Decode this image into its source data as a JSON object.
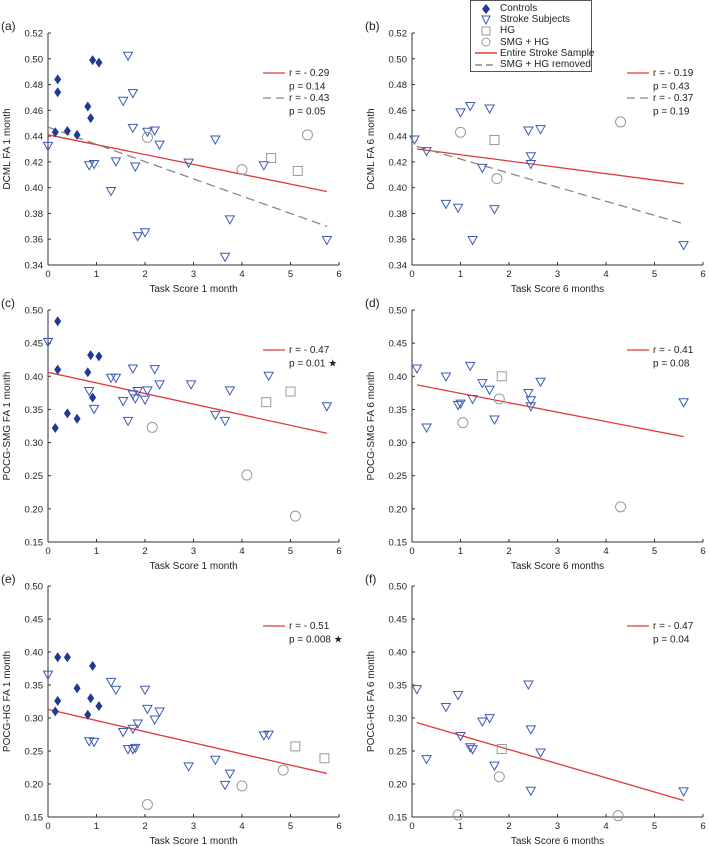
{
  "colors": {
    "controls": "#1f3a93",
    "stroke": "#3b5bb5",
    "hg": "#999999",
    "smg": "#999999",
    "red": "#e03a3a",
    "dashed": "#888888"
  },
  "legend": {
    "controls": "Controls",
    "stroke": "Stroke Subjects",
    "hg": "HG",
    "smg": "SMG + HG",
    "entire": "Entire Stroke Sample",
    "removed": "SMG + HG removed"
  },
  "chart_data": [
    {
      "type": "scatter",
      "panel": "(a)",
      "xlabel": "Task Score 1 month",
      "ylabel": "DCML FA 1 month",
      "xlim": [
        0,
        6
      ],
      "ylim": [
        0.34,
        0.52
      ],
      "xticks": [
        "0",
        "1",
        "2",
        "3",
        "4",
        "5",
        "6"
      ],
      "yticks": [
        "0.34",
        "0.36",
        "0.38",
        "0.40",
        "0.42",
        "0.44",
        "0.46",
        "0.48",
        "0.50",
        "0.52"
      ],
      "controls": [
        [
          0.15,
          0.443
        ],
        [
          0.2,
          0.484
        ],
        [
          0.2,
          0.474
        ],
        [
          0.4,
          0.444
        ],
        [
          0.6,
          0.441
        ],
        [
          0.82,
          0.463
        ],
        [
          0.88,
          0.454
        ],
        [
          0.92,
          0.499
        ],
        [
          1.05,
          0.497
        ]
      ],
      "stroke": [
        [
          0,
          0.432
        ],
        [
          0.85,
          0.417
        ],
        [
          0.95,
          0.418
        ],
        [
          1.3,
          0.397
        ],
        [
          1.4,
          0.42
        ],
        [
          1.55,
          0.467
        ],
        [
          1.65,
          0.502
        ],
        [
          1.75,
          0.473
        ],
        [
          1.75,
          0.446
        ],
        [
          1.8,
          0.416
        ],
        [
          1.85,
          0.362
        ],
        [
          2.0,
          0.365
        ],
        [
          2.05,
          0.443
        ],
        [
          2.2,
          0.444
        ],
        [
          2.3,
          0.433
        ],
        [
          2.9,
          0.419
        ],
        [
          3.45,
          0.437
        ],
        [
          3.65,
          0.346
        ],
        [
          3.75,
          0.375
        ],
        [
          4.45,
          0.417
        ],
        [
          5.75,
          0.359
        ]
      ],
      "hg": [
        [
          4.6,
          0.423
        ],
        [
          5.15,
          0.413
        ]
      ],
      "smg": [
        [
          2.05,
          0.439
        ],
        [
          4.0,
          0.414
        ],
        [
          5.35,
          0.441
        ]
      ],
      "fit_entire": [
        [
          0,
          0.441
        ],
        [
          5.75,
          0.397
        ]
      ],
      "fit_removed": [
        [
          0,
          0.447
        ],
        [
          5.75,
          0.37
        ]
      ],
      "stats_entire": [
        "r = - 0.29",
        "p = 0.14"
      ],
      "stats_removed": [
        "r = - 0.43",
        "p = 0.05"
      ]
    },
    {
      "type": "scatter",
      "panel": "(b)",
      "xlabel": "Task Score 6 months",
      "ylabel": "DCML FA 6 month",
      "xlim": [
        0,
        6
      ],
      "ylim": [
        0.34,
        0.52
      ],
      "xticks": [
        "0",
        "1",
        "2",
        "3",
        "4",
        "5",
        "6"
      ],
      "yticks": [
        "0.34",
        "0.36",
        "0.38",
        "0.40",
        "0.42",
        "0.44",
        "0.46",
        "0.48",
        "0.50",
        "0.52"
      ],
      "controls": [],
      "stroke": [
        [
          0.05,
          0.437
        ],
        [
          0.3,
          0.428
        ],
        [
          0.7,
          0.387
        ],
        [
          0.95,
          0.384
        ],
        [
          1.0,
          0.458
        ],
        [
          1.2,
          0.463
        ],
        [
          1.25,
          0.359
        ],
        [
          1.45,
          0.415
        ],
        [
          1.6,
          0.461
        ],
        [
          1.7,
          0.383
        ],
        [
          2.4,
          0.444
        ],
        [
          2.45,
          0.424
        ],
        [
          2.45,
          0.418
        ],
        [
          2.65,
          0.445
        ],
        [
          5.6,
          0.355
        ]
      ],
      "hg": [
        [
          1.7,
          0.437
        ]
      ],
      "smg": [
        [
          1.0,
          0.443
        ],
        [
          1.75,
          0.407
        ],
        [
          4.3,
          0.451
        ]
      ],
      "fit_entire": [
        [
          0.1,
          0.43
        ],
        [
          5.6,
          0.403
        ]
      ],
      "fit_removed": [
        [
          0.1,
          0.432
        ],
        [
          5.6,
          0.372
        ]
      ],
      "stats_entire": [
        "r = - 0.19",
        "p = 0.43"
      ],
      "stats_removed": [
        "r = - 0.37",
        "p = 0.19"
      ]
    },
    {
      "type": "scatter",
      "panel": "(c)",
      "xlabel": "Task Score 1 month",
      "ylabel": "POCG-SMG FA 1 month",
      "xlim": [
        0,
        6
      ],
      "ylim": [
        0.15,
        0.5
      ],
      "xticks": [
        "0",
        "1",
        "2",
        "3",
        "4",
        "5",
        "6"
      ],
      "yticks": [
        "0.15",
        "0.20",
        "0.25",
        "0.30",
        "0.35",
        "0.40",
        "0.45",
        "0.50"
      ],
      "controls": [
        [
          0.15,
          0.322
        ],
        [
          0.2,
          0.483
        ],
        [
          0.2,
          0.41
        ],
        [
          0.4,
          0.344
        ],
        [
          0.6,
          0.336
        ],
        [
          0.82,
          0.406
        ],
        [
          0.88,
          0.432
        ],
        [
          0.92,
          0.368
        ],
        [
          1.05,
          0.43
        ]
      ],
      "stroke": [
        [
          0,
          0.451
        ],
        [
          0.85,
          0.377
        ],
        [
          0.95,
          0.35
        ],
        [
          1.3,
          0.397
        ],
        [
          1.4,
          0.397
        ],
        [
          1.55,
          0.362
        ],
        [
          1.65,
          0.332
        ],
        [
          1.75,
          0.411
        ],
        [
          1.75,
          0.372
        ],
        [
          1.8,
          0.366
        ],
        [
          1.85,
          0.377
        ],
        [
          2.0,
          0.364
        ],
        [
          2.05,
          0.378
        ],
        [
          2.2,
          0.41
        ],
        [
          2.3,
          0.387
        ],
        [
          2.95,
          0.387
        ],
        [
          3.45,
          0.341
        ],
        [
          3.65,
          0.332
        ],
        [
          3.75,
          0.378
        ],
        [
          4.55,
          0.4
        ],
        [
          5.75,
          0.354
        ]
      ],
      "hg": [
        [
          4.5,
          0.361
        ],
        [
          5.0,
          0.377
        ]
      ],
      "smg": [
        [
          2.15,
          0.323
        ],
        [
          4.1,
          0.251
        ],
        [
          5.1,
          0.189
        ]
      ],
      "fit_entire": [
        [
          0,
          0.406
        ],
        [
          5.75,
          0.314
        ]
      ],
      "stats_entire": [
        "r = - 0.47",
        "p = 0.01 ★"
      ]
    },
    {
      "type": "scatter",
      "panel": "(d)",
      "xlabel": "Task Score 6 months",
      "ylabel": "POCG-SMG FA 6 month",
      "xlim": [
        0,
        6
      ],
      "ylim": [
        0.15,
        0.5
      ],
      "xticks": [
        "0",
        "1",
        "2",
        "3",
        "4",
        "5",
        "6"
      ],
      "yticks": [
        "0.15",
        "0.20",
        "0.25",
        "0.30",
        "0.35",
        "0.40",
        "0.45",
        "0.50"
      ],
      "controls": [],
      "stroke": [
        [
          0.1,
          0.411
        ],
        [
          0.3,
          0.322
        ],
        [
          0.7,
          0.399
        ],
        [
          0.95,
          0.356
        ],
        [
          1.0,
          0.358
        ],
        [
          1.2,
          0.415
        ],
        [
          1.25,
          0.365
        ],
        [
          1.45,
          0.389
        ],
        [
          1.6,
          0.379
        ],
        [
          1.7,
          0.334
        ],
        [
          2.4,
          0.374
        ],
        [
          2.45,
          0.363
        ],
        [
          2.45,
          0.354
        ],
        [
          2.65,
          0.391
        ],
        [
          5.6,
          0.36
        ]
      ],
      "hg": [
        [
          1.85,
          0.4
        ]
      ],
      "smg": [
        [
          1.05,
          0.33
        ],
        [
          1.8,
          0.366
        ],
        [
          4.3,
          0.203
        ]
      ],
      "fit_entire": [
        [
          0.1,
          0.387
        ],
        [
          5.6,
          0.309
        ]
      ],
      "stats_entire": [
        "r = - 0.41",
        "p = 0.08"
      ]
    },
    {
      "type": "scatter",
      "panel": "(e)",
      "xlabel": "Task Score 1 month",
      "ylabel": "POCG-HG FA 1 month",
      "xlim": [
        0,
        6
      ],
      "ylim": [
        0.15,
        0.5
      ],
      "xticks": [
        "0",
        "1",
        "2",
        "3",
        "4",
        "5",
        "6"
      ],
      "yticks": [
        "0.15",
        "0.20",
        "0.25",
        "0.30",
        "0.35",
        "0.40",
        "0.45",
        "0.50"
      ],
      "controls": [
        [
          0.15,
          0.31
        ],
        [
          0.2,
          0.392
        ],
        [
          0.2,
          0.326
        ],
        [
          0.4,
          0.392
        ],
        [
          0.6,
          0.345
        ],
        [
          0.82,
          0.305
        ],
        [
          0.88,
          0.33
        ],
        [
          0.92,
          0.379
        ],
        [
          1.05,
          0.318
        ]
      ],
      "stroke": [
        [
          0,
          0.365
        ],
        [
          0.85,
          0.264
        ],
        [
          0.95,
          0.263
        ],
        [
          1.3,
          0.354
        ],
        [
          1.4,
          0.342
        ],
        [
          1.55,
          0.278
        ],
        [
          1.65,
          0.252
        ],
        [
          1.75,
          0.283
        ],
        [
          1.75,
          0.252
        ],
        [
          1.8,
          0.254
        ],
        [
          1.85,
          0.291
        ],
        [
          2.0,
          0.342
        ],
        [
          2.05,
          0.313
        ],
        [
          2.2,
          0.297
        ],
        [
          2.3,
          0.309
        ],
        [
          2.9,
          0.226
        ],
        [
          3.45,
          0.236
        ],
        [
          3.65,
          0.198
        ],
        [
          3.75,
          0.215
        ],
        [
          4.45,
          0.273
        ],
        [
          4.55,
          0.274
        ]
      ],
      "hg": [
        [
          5.1,
          0.257
        ],
        [
          5.7,
          0.239
        ]
      ],
      "smg": [
        [
          2.05,
          0.169
        ],
        [
          4.0,
          0.197
        ],
        [
          4.85,
          0.221
        ]
      ],
      "fit_entire": [
        [
          0,
          0.313
        ],
        [
          5.75,
          0.216
        ]
      ],
      "stats_entire": [
        "r = - 0.51",
        "p = 0.008 ★"
      ]
    },
    {
      "type": "scatter",
      "panel": "(f)",
      "xlabel": "Task Score 6 months",
      "ylabel": "POCG-HG FA 6 month",
      "xlim": [
        0,
        6
      ],
      "ylim": [
        0.15,
        0.5
      ],
      "xticks": [
        "0",
        "1",
        "2",
        "3",
        "4",
        "5",
        "6"
      ],
      "yticks": [
        "0.15",
        "0.20",
        "0.25",
        "0.30",
        "0.35",
        "0.40",
        "0.45",
        "0.50"
      ],
      "controls": [],
      "stroke": [
        [
          0.1,
          0.343
        ],
        [
          0.3,
          0.237
        ],
        [
          0.7,
          0.316
        ],
        [
          0.95,
          0.334
        ],
        [
          1.0,
          0.272
        ],
        [
          1.2,
          0.255
        ],
        [
          1.25,
          0.252
        ],
        [
          1.45,
          0.294
        ],
        [
          1.6,
          0.299
        ],
        [
          1.7,
          0.227
        ],
        [
          2.4,
          0.35
        ],
        [
          2.45,
          0.189
        ],
        [
          2.45,
          0.282
        ],
        [
          2.65,
          0.247
        ],
        [
          5.6,
          0.188
        ]
      ],
      "hg": [
        [
          1.85,
          0.253
        ]
      ],
      "smg": [
        [
          0.95,
          0.153
        ],
        [
          1.8,
          0.211
        ],
        [
          4.25,
          0.152
        ]
      ],
      "fit_entire": [
        [
          0.1,
          0.293
        ],
        [
          5.6,
          0.175
        ]
      ],
      "stats_entire": [
        "r = - 0.47",
        "p = 0.04"
      ]
    }
  ]
}
